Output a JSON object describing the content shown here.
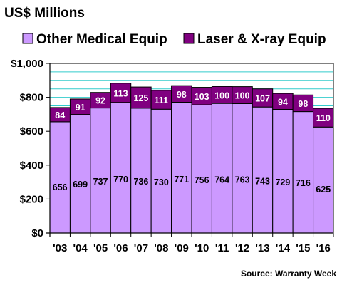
{
  "chart_data": {
    "type": "bar",
    "stacked": true,
    "title": "US$ Millions",
    "categories": [
      "'03",
      "'04",
      "'05",
      "'06",
      "'07",
      "'08",
      "'09",
      "'10",
      "'11",
      "'12",
      "'13",
      "'14",
      "'15",
      "'16"
    ],
    "series": [
      {
        "name": "Other Medical Equip",
        "color": "#cc99ff",
        "label_color": "#000000",
        "values": [
          656,
          699,
          737,
          770,
          736,
          730,
          771,
          756,
          764,
          763,
          743,
          729,
          716,
          625
        ]
      },
      {
        "name": "Laser & X-ray Equip",
        "color": "#800080",
        "label_color": "#ffffff",
        "values": [
          84,
          91,
          92,
          113,
          125,
          111,
          98,
          103,
          100,
          100,
          107,
          94,
          98,
          110
        ]
      }
    ],
    "ylim": [
      0,
      1000
    ],
    "y_ticks": [
      0,
      200,
      400,
      600,
      800,
      1000
    ],
    "y_tick_labels": [
      "$0",
      "$200",
      "$400",
      "$600",
      "$800",
      "$1,000"
    ],
    "minor_grid_step": 50,
    "grid": true,
    "legend_position": "top",
    "plot_background": "#ffffff",
    "gridline_color": "#33cccc",
    "source": "Source: Warranty Week"
  }
}
